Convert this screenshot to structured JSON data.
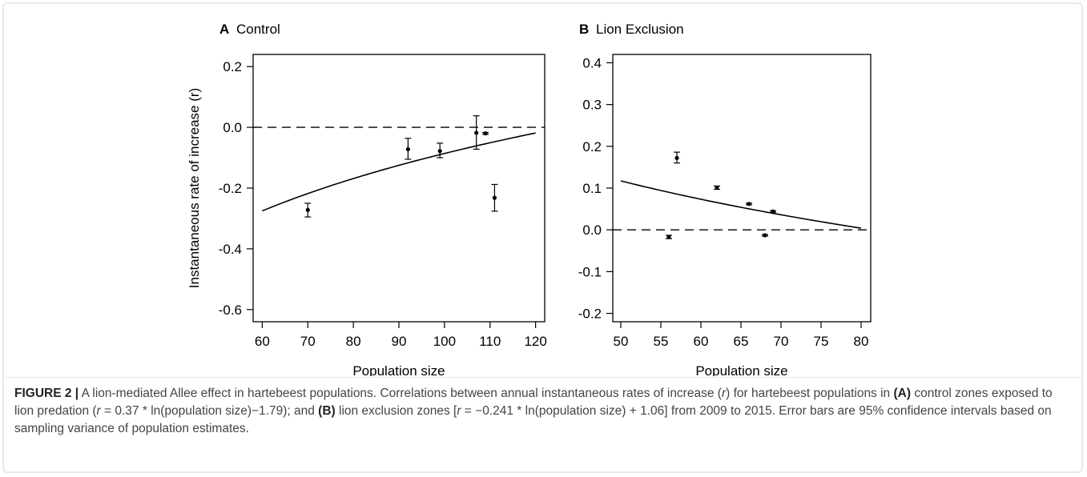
{
  "chart_data": [
    {
      "type": "scatter",
      "panel_letter": "A",
      "title": "Control",
      "xlabel": "Population size",
      "ylabel": "Instantaneous rate of increase (r)",
      "xlim": [
        58,
        122
      ],
      "ylim": [
        -0.64,
        0.24
      ],
      "xticks": [
        60,
        70,
        80,
        90,
        100,
        110,
        120
      ],
      "yticks": [
        -0.6,
        -0.4,
        -0.2,
        0.0,
        0.2
      ],
      "ytick_labels": [
        "-0.6",
        "-0.4",
        "-0.2",
        "0.0",
        "0.2"
      ],
      "reference_line_y": 0.0,
      "points": [
        {
          "x": 70,
          "y": -0.272,
          "lo": -0.295,
          "hi": -0.25
        },
        {
          "x": 92,
          "y": -0.072,
          "lo": -0.105,
          "hi": -0.036
        },
        {
          "x": 99,
          "y": -0.078,
          "lo": -0.1,
          "hi": -0.052
        },
        {
          "x": 107,
          "y": -0.018,
          "lo": -0.072,
          "hi": 0.038
        },
        {
          "x": 109,
          "y": -0.02,
          "lo": -0.023,
          "hi": -0.017
        },
        {
          "x": 111,
          "y": -0.232,
          "lo": -0.276,
          "hi": -0.188
        }
      ],
      "fit": {
        "a": 0.37,
        "b": -1.79,
        "x_start": 60,
        "x_end": 120
      }
    },
    {
      "type": "scatter",
      "panel_letter": "B",
      "title": "Lion Exclusion",
      "xlabel": "Population size",
      "ylabel": "",
      "xlim": [
        49,
        81.2
      ],
      "ylim": [
        -0.22,
        0.42
      ],
      "xticks": [
        50,
        55,
        60,
        65,
        70,
        75,
        80
      ],
      "yticks": [
        -0.2,
        -0.1,
        0.0,
        0.1,
        0.2,
        0.3,
        0.4
      ],
      "ytick_labels": [
        "-0.2",
        "-0.1",
        "0.0",
        "0.1",
        "0.2",
        "0.3",
        "0.4"
      ],
      "reference_line_y": 0.0,
      "points": [
        {
          "x": 56,
          "y": -0.017,
          "lo": -0.021,
          "hi": -0.013
        },
        {
          "x": 57,
          "y": 0.172,
          "lo": 0.16,
          "hi": 0.186
        },
        {
          "x": 62,
          "y": 0.101,
          "lo": 0.097,
          "hi": 0.105
        },
        {
          "x": 66,
          "y": 0.062,
          "lo": 0.06,
          "hi": 0.064
        },
        {
          "x": 68,
          "y": -0.013,
          "lo": -0.015,
          "hi": -0.011
        },
        {
          "x": 69,
          "y": 0.044,
          "lo": 0.042,
          "hi": 0.046
        }
      ],
      "fit": {
        "a": -0.241,
        "b": 1.06,
        "x_start": 50,
        "x_end": 80
      }
    }
  ],
  "caption": {
    "label": "FIGURE 2 |",
    "s1": " A lion-mediated Allee effect in hartebeest populations. Correlations between annual instantaneous rates of increase (",
    "s1_var": "r",
    "s2": ") for hartebeest populations in ",
    "s2_bold": "(A)",
    "s3": " control zones exposed to lion predation (",
    "s3_var": "r",
    "s4": " = 0.37 * ln(population size)−1.79); and ",
    "s4_bold": "(B)",
    "s5": " lion exclusion zones [",
    "s5_var": "r",
    "s6": " = −0.241 * ln(population size) + 1.06] from 2009 to 2015. Error bars are 95% confidence intervals based on sampling variance of population estimates."
  }
}
